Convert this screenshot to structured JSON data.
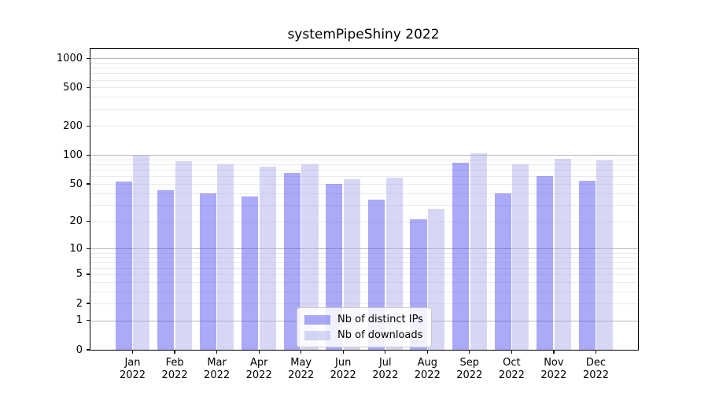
{
  "chart_data": {
    "type": "bar",
    "title": "systemPipeShiny 2022",
    "categories": [
      "Jan",
      "Feb",
      "Mar",
      "Apr",
      "May",
      "Jun",
      "Jul",
      "Aug",
      "Sep",
      "Oct",
      "Nov",
      "Dec"
    ],
    "category_year": "2022",
    "series": [
      {
        "name": "Nb of distinct IPs",
        "color_hex": "#aaaaf8",
        "color_rgba": "rgba(85,85,241,0.5)",
        "values": [
          53,
          43,
          40,
          37,
          65,
          50,
          34,
          21,
          84,
          40,
          60,
          54
        ]
      },
      {
        "name": "Nb of downloads",
        "color_hex": "#d7d7f5",
        "color_rgba": "rgba(175,175,235,0.5)",
        "values": [
          101,
          87,
          81,
          76,
          81,
          56,
          58,
          27,
          104,
          80,
          92,
          89
        ]
      }
    ],
    "yscale": "log1p",
    "yticks": [
      0,
      1,
      2,
      5,
      10,
      20,
      50,
      100,
      200,
      500,
      1000
    ],
    "ytick_labels": [
      "0",
      "1",
      "2",
      "5",
      "10",
      "20",
      "50",
      "100",
      "200",
      "500",
      "1000"
    ],
    "ylim_top_value": 1280,
    "xlabel": "",
    "ylabel": "",
    "grid": true,
    "grid_major_color": "#b6b6b6",
    "grid_minor_color": "#ebebeb",
    "legend_position": "lower center"
  }
}
